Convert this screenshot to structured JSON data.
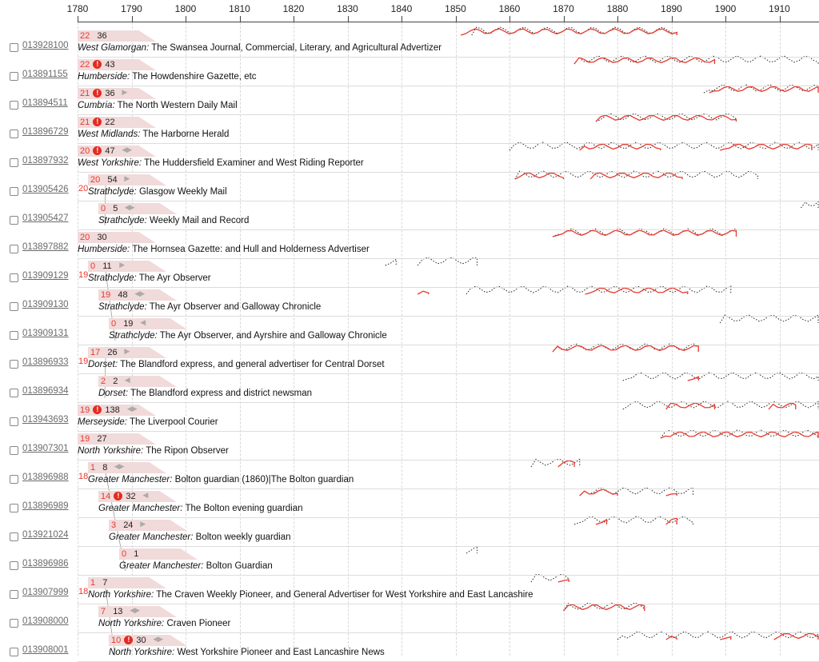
{
  "axis": {
    "years": [
      "1780",
      "1790",
      "1800",
      "1810",
      "1820",
      "1830",
      "1840",
      "1850",
      "1860",
      "1870",
      "1880",
      "1890",
      "1900",
      "1910"
    ]
  },
  "colors": {
    "accent": "#e8392f",
    "tab_bg": "#f1dada",
    "link": "#6a6a6a",
    "warn": "#e32b20"
  },
  "icons": {
    "warning": "exclamation-circle-icon",
    "arrows": "left-right-arrows-icon",
    "checkbox": "checkbox-icon"
  },
  "rows": [
    {
      "id": "013928100",
      "n1": "22",
      "warn": false,
      "n2": "36",
      "arrows": "",
      "region": "West Glamorgan:",
      "title": "The Swansea Journal, Commercial, Literary, and Agricultural Advertizer"
    },
    {
      "id": "013891155",
      "n1": "22",
      "warn": true,
      "n2": "43",
      "arrows": "",
      "region": "Humberside:",
      "title": "The Howdenshire Gazette, etc"
    },
    {
      "id": "013894511",
      "n1": "21",
      "warn": true,
      "n2": "36",
      "arrows": "▶",
      "region": "Cumbria:",
      "title": "The North Western Daily Mail"
    },
    {
      "id": "013896729",
      "n1": "21",
      "warn": true,
      "n2": "22",
      "arrows": "",
      "region": "West Midlands:",
      "title": "The Harborne Herald"
    },
    {
      "id": "013897932",
      "n1": "20",
      "warn": true,
      "n2": "47",
      "arrows": "◀▶",
      "region": "West Yorkshire:",
      "title": "The Huddersfield Examiner and West Riding Reporter"
    },
    {
      "id": "013905426",
      "n1": "20",
      "warn": false,
      "n2": "54",
      "arrows": "▶",
      "region": "Strathclyde:",
      "title": "Glasgow Weekly Mail"
    },
    {
      "id": "013905427",
      "n1": "0",
      "warn": false,
      "n2": "5",
      "arrows": "◀▶",
      "region": "Strathclyde:",
      "title": "Weekly Mail and Record"
    },
    {
      "id": "013897882",
      "n1": "20",
      "warn": false,
      "n2": "30",
      "arrows": "",
      "region": "Humberside:",
      "title": "The Hornsea Gazette: and Hull and Holderness Advertiser"
    },
    {
      "id": "013909129",
      "n1": "0",
      "warn": false,
      "n2": "11",
      "arrows": "▶",
      "region": "Strathclyde:",
      "title": "The Ayr Observer"
    },
    {
      "id": "013909130",
      "n1": "19",
      "warn": false,
      "n2": "48",
      "arrows": "◀▶",
      "region": "Strathclyde:",
      "title": "The Ayr Observer and Galloway Chronicle"
    },
    {
      "id": "013909131",
      "n1": "0",
      "warn": false,
      "n2": "19",
      "arrows": "◀",
      "region": "Strathclyde:",
      "title": "The Ayr Observer, and Ayrshire and Galloway Chronicle"
    },
    {
      "id": "013896933",
      "n1": "17",
      "warn": false,
      "n2": "26",
      "arrows": "▶",
      "region": "Dorset:",
      "title": "The Blandford express, and general advertiser for Central Dorset"
    },
    {
      "id": "013896934",
      "n1": "2",
      "warn": false,
      "n2": "2",
      "arrows": "◀",
      "region": "Dorset:",
      "title": "The Blandford express and district newsman"
    },
    {
      "id": "013943693",
      "n1": "19",
      "warn": true,
      "n2": "138",
      "arrows": "◀▶",
      "region": "Merseyside:",
      "title": "The Liverpool Courier"
    },
    {
      "id": "013907301",
      "n1": "19",
      "warn": false,
      "n2": "27",
      "arrows": "",
      "region": "North Yorkshire:",
      "title": "The Ripon Observer"
    },
    {
      "id": "013896988",
      "n1": "1",
      "warn": false,
      "n2": "8",
      "arrows": "◀▶",
      "region": "Greater Manchester:",
      "title": "Bolton guardian (1860)|The Bolton guardian"
    },
    {
      "id": "013896989",
      "n1": "14",
      "warn": true,
      "n2": "32",
      "arrows": "◀",
      "region": "Greater Manchester:",
      "title": "The Bolton evening guardian"
    },
    {
      "id": "013921024",
      "n1": "3",
      "warn": false,
      "n2": "24",
      "arrows": "▶",
      "region": "Greater Manchester:",
      "title": "Bolton weekly guardian"
    },
    {
      "id": "013896986",
      "n1": "0",
      "warn": false,
      "n2": "1",
      "arrows": "",
      "region": "Greater Manchester:",
      "title": "Bolton Guardian"
    },
    {
      "id": "013907999",
      "n1": "1",
      "warn": false,
      "n2": "7",
      "arrows": "",
      "region": "North Yorkshire:",
      "title": "The Craven Weekly Pioneer, and General Advertiser for West Yorkshire and East Lancashire"
    },
    {
      "id": "013908000",
      "n1": "7",
      "warn": false,
      "n2": "13",
      "arrows": "◀▶",
      "region": "North Yorkshire:",
      "title": "Craven Pioneer"
    },
    {
      "id": "013908001",
      "n1": "10",
      "warn": true,
      "n2": "30",
      "arrows": "◀▶",
      "region": "North Yorkshire:",
      "title": "West Yorkshire Pioneer and East Lancashire News"
    }
  ],
  "groups": [
    {
      "label": "20"
    },
    {
      "label": "19"
    },
    {
      "label": "19"
    },
    {
      "label": "18"
    },
    {
      "label": "18"
    }
  ],
  "spans": [
    {
      "dotted": [
        [
          1853,
          1891
        ]
      ],
      "red": [
        [
          1851,
          1891
        ]
      ]
    },
    {
      "dotted": [
        [
          1872,
          1918
        ]
      ],
      "red": [
        [
          1872,
          1898
        ]
      ]
    },
    {
      "dotted": [
        [
          1896,
          1918
        ]
      ],
      "red": [
        [
          1897,
          1918
        ]
      ]
    },
    {
      "dotted": [
        [
          1876,
          1902
        ]
      ],
      "red": [
        [
          1876,
          1902
        ]
      ]
    },
    {
      "dotted": [
        [
          1860,
          1918
        ]
      ],
      "red": [
        [
          1873,
          1888
        ],
        [
          1899,
          1916
        ]
      ]
    },
    {
      "dotted": [
        [
          1861,
          1906
        ]
      ],
      "red": [
        [
          1861,
          1870
        ],
        [
          1875,
          1892
        ]
      ]
    },
    {
      "dotted": [
        [
          1914,
          1918
        ]
      ],
      "red": []
    },
    {
      "dotted": [
        [
          1868,
          1902
        ]
      ],
      "red": [
        [
          1868,
          1902
        ]
      ]
    },
    {
      "dotted": [
        [
          1837,
          1839
        ],
        [
          1843,
          1854
        ]
      ],
      "red": []
    },
    {
      "dotted": [
        [
          1852,
          1901
        ]
      ],
      "red": [
        [
          1843,
          1845
        ],
        [
          1874,
          1893
        ]
      ]
    },
    {
      "dotted": [
        [
          1899,
          1918
        ]
      ],
      "red": []
    },
    {
      "dotted": [
        [
          1868,
          1895
        ]
      ],
      "red": [
        [
          1868,
          1895
        ]
      ]
    },
    {
      "dotted": [
        [
          1881,
          1918
        ]
      ],
      "red": [
        [
          1893,
          1895
        ]
      ]
    },
    {
      "dotted": [
        [
          1881,
          1918
        ]
      ],
      "red": [
        [
          1889,
          1898
        ],
        [
          1908,
          1913
        ]
      ]
    },
    {
      "dotted": [
        [
          1888,
          1918
        ]
      ],
      "red": [
        [
          1888,
          1918
        ]
      ]
    },
    {
      "dotted": [
        [
          1864,
          1873
        ]
      ],
      "red": [
        [
          1869,
          1872
        ]
      ]
    },
    {
      "dotted": [
        [
          1873,
          1894
        ]
      ],
      "red": [
        [
          1873,
          1880
        ],
        [
          1889,
          1891
        ]
      ]
    },
    {
      "dotted": [
        [
          1872,
          1894
        ]
      ],
      "red": [
        [
          1876,
          1878
        ],
        [
          1889,
          1891
        ]
      ]
    },
    {
      "dotted": [
        [
          1852,
          1854
        ]
      ],
      "red": []
    },
    {
      "dotted": [
        [
          1864,
          1871
        ]
      ],
      "red": [
        [
          1869,
          1871
        ]
      ]
    },
    {
      "dotted": [
        [
          1870,
          1885
        ]
      ],
      "red": [
        [
          1870,
          1885
        ]
      ]
    },
    {
      "dotted": [
        [
          1880,
          1918
        ]
      ],
      "red": [
        [
          1889,
          1891
        ],
        [
          1899,
          1901
        ],
        [
          1909,
          1918
        ]
      ]
    }
  ]
}
